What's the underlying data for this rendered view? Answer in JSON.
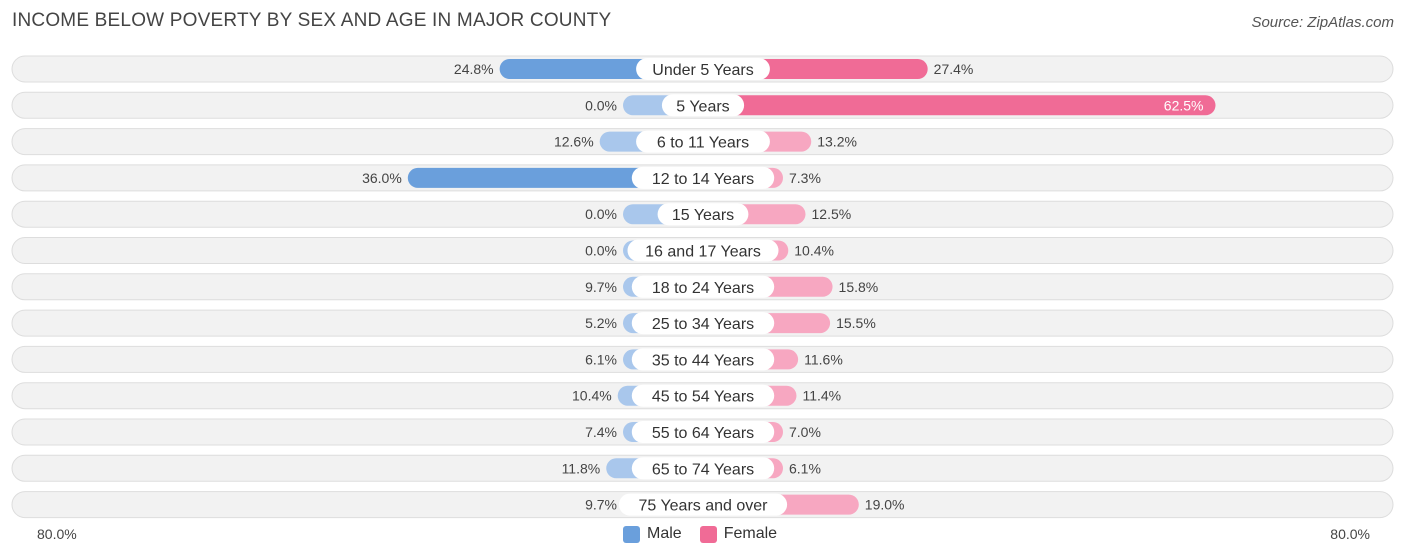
{
  "title": "INCOME BELOW POVERTY BY SEX AND AGE IN MAJOR COUNTY",
  "source": "Source: ZipAtlas.com",
  "colors": {
    "male": "#6a9fdc",
    "male_light": "#a9c7ec",
    "female": "#f06b96",
    "female_light": "#f7a7c1",
    "row_bg": "#f2f2f2",
    "row_border": "#dddddd"
  },
  "legend": {
    "male": "Male",
    "female": "Female"
  },
  "axis": {
    "left_label": "80.0%",
    "right_label": "80.0%"
  },
  "chart_data": {
    "type": "bar",
    "orientation": "horizontal-diverging",
    "title": "INCOME BELOW POVERTY BY SEX AND AGE IN MAJOR COUNTY",
    "xlim": [
      -80,
      80
    ],
    "categories": [
      "Under 5 Years",
      "5 Years",
      "6 to 11 Years",
      "12 to 14 Years",
      "15 Years",
      "16 and 17 Years",
      "18 to 24 Years",
      "25 to 34 Years",
      "35 to 44 Years",
      "45 to 54 Years",
      "55 to 64 Years",
      "65 to 74 Years",
      "75 Years and over"
    ],
    "series": [
      {
        "name": "Male",
        "values": [
          24.8,
          0.0,
          12.6,
          36.0,
          0.0,
          0.0,
          9.7,
          5.2,
          6.1,
          10.4,
          7.4,
          11.8,
          9.7
        ],
        "labels": [
          "24.8%",
          "0.0%",
          "12.6%",
          "36.0%",
          "0.0%",
          "0.0%",
          "9.7%",
          "5.2%",
          "6.1%",
          "10.4%",
          "7.4%",
          "11.8%",
          "9.7%"
        ]
      },
      {
        "name": "Female",
        "values": [
          27.4,
          62.5,
          13.2,
          7.3,
          12.5,
          10.4,
          15.8,
          15.5,
          11.6,
          11.4,
          7.0,
          6.1,
          19.0
        ],
        "labels": [
          "27.4%",
          "62.5%",
          "13.2%",
          "7.3%",
          "12.5%",
          "10.4%",
          "15.8%",
          "15.5%",
          "11.6%",
          "11.4%",
          "7.0%",
          "6.1%",
          "19.0%"
        ]
      }
    ]
  }
}
